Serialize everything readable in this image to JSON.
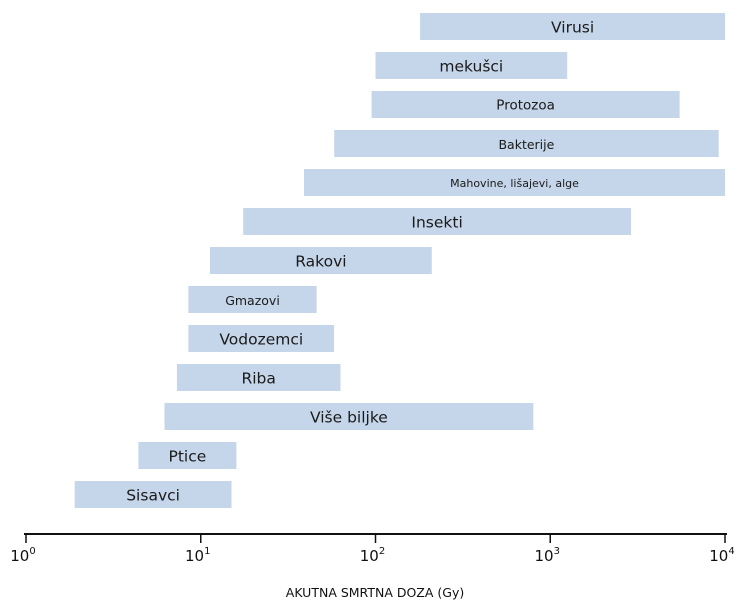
{
  "chart_data": {
    "type": "bar",
    "orientation": "horizontal-range",
    "x_scale": "log",
    "xlim": [
      1,
      10000
    ],
    "xticks": [
      {
        "base": "10",
        "exp": "0"
      },
      {
        "base": "10",
        "exp": "1"
      },
      {
        "base": "10",
        "exp": "2"
      },
      {
        "base": "10",
        "exp": "3"
      },
      {
        "base": "10",
        "exp": "4"
      }
    ],
    "xlabel": "AKUTNA SMRTNA DOZA (Gy)",
    "grid": false,
    "color": "#c5d6ea",
    "bars": [
      {
        "label": "Virusi",
        "min": 180,
        "max": 10000
      },
      {
        "label": "mekušci",
        "min": 100,
        "max": 1250
      },
      {
        "label": "Protozoa",
        "min": 95,
        "max": 5500
      },
      {
        "label": "Bakterije",
        "min": 58,
        "max": 9200
      },
      {
        "label": "Mahovine, lišajevi, alge",
        "min": 39,
        "max": 10000
      },
      {
        "label": "Insekti",
        "min": 17.5,
        "max": 2900
      },
      {
        "label": "Rakovi",
        "min": 11.3,
        "max": 210
      },
      {
        "label": "Gmazovi",
        "min": 8.5,
        "max": 46
      },
      {
        "label": "Vodozemci",
        "min": 8.5,
        "max": 58
      },
      {
        "label": "Riba",
        "min": 7.3,
        "max": 63
      },
      {
        "label": "Više biljke",
        "min": 6.2,
        "max": 800
      },
      {
        "label": "Ptice",
        "min": 4.4,
        "max": 16
      },
      {
        "label": "Sisavci",
        "min": 1.9,
        "max": 15
      }
    ]
  }
}
